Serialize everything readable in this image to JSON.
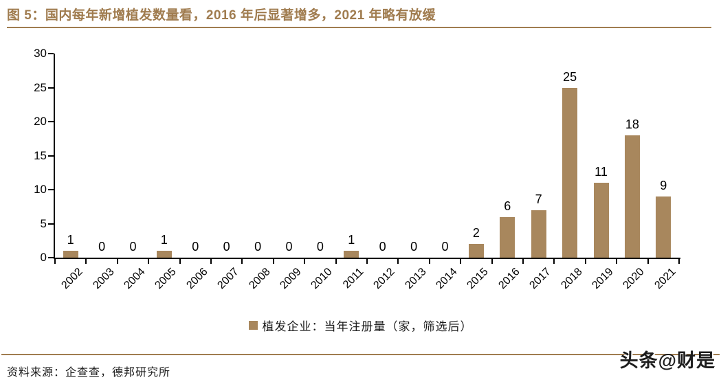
{
  "figure": {
    "title": "图 5：国内每年新增植发数量看，2016 年后显著增多，2021 年略有放缓",
    "source_note": "资料来源：企查查，德邦研究所",
    "watermark": "头条@财是"
  },
  "colors": {
    "accent_brown": "#A07C4F",
    "bar_fill": "#A8875D",
    "axis_black": "#000000",
    "text_dark": "#1a1a1a"
  },
  "chart_data": {
    "type": "bar",
    "title": "图 5：国内每年新增植发数量看，2016 年后显著增多，2021 年略有放缓",
    "categories": [
      "2002",
      "2003",
      "2004",
      "2005",
      "2006",
      "2007",
      "2008",
      "2009",
      "2010",
      "2011",
      "2012",
      "2013",
      "2014",
      "2015",
      "2016",
      "2017",
      "2018",
      "2019",
      "2020",
      "2021"
    ],
    "values": [
      1,
      0,
      0,
      1,
      0,
      0,
      0,
      0,
      0,
      1,
      0,
      0,
      0,
      2,
      6,
      7,
      25,
      11,
      18,
      9
    ],
    "xlabel": "",
    "ylabel": "",
    "ylim": [
      0,
      30
    ],
    "yticks": [
      0,
      5,
      10,
      15,
      20,
      25,
      30
    ],
    "grid": false,
    "bar_labels": true,
    "legend_position": "bottom",
    "legend": [
      {
        "label": "植发企业：当年注册量（家，筛选后）",
        "color": "#A8875D"
      }
    ]
  }
}
